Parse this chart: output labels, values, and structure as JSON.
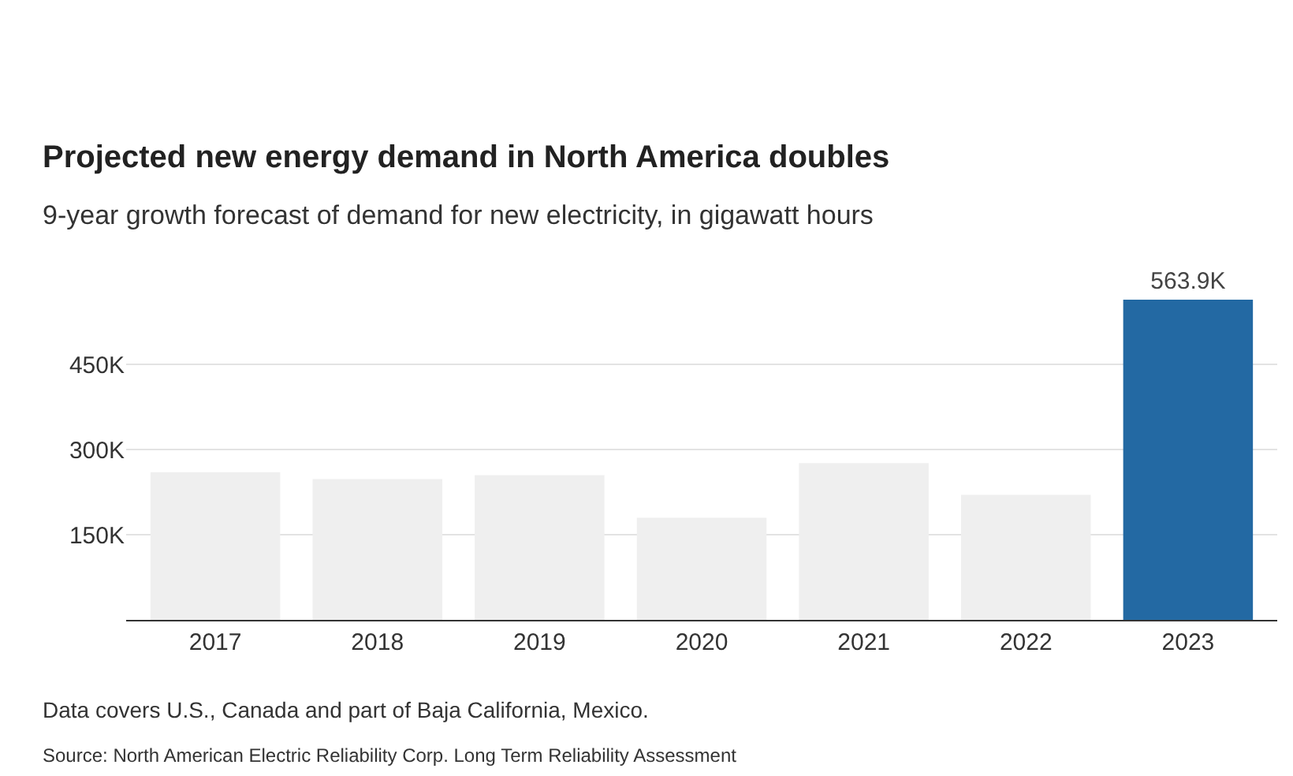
{
  "chart_data": {
    "type": "bar",
    "title": "Projected new energy demand in North America doubles",
    "subtitle": "9-year growth forecast of demand for new electricity, in gigawatt hours",
    "categories": [
      "2017",
      "2018",
      "2019",
      "2020",
      "2021",
      "2022",
      "2023"
    ],
    "values": [
      260000,
      248000,
      255000,
      180000,
      276000,
      220000,
      563900
    ],
    "colors": [
      "#efefef",
      "#efefef",
      "#efefef",
      "#efefef",
      "#efefef",
      "#efefef",
      "#2369a3"
    ],
    "value_labels": [
      null,
      null,
      null,
      null,
      null,
      null,
      "563.9K"
    ],
    "ylim": [
      0,
      563900
    ],
    "yticks": [
      {
        "value": 150000,
        "label": "150K"
      },
      {
        "value": 300000,
        "label": "300K"
      },
      {
        "value": 450000,
        "label": "450K"
      }
    ],
    "grid": "y",
    "annotations": [
      "Data covers U.S., Canada and part of Baja California, Mexico.",
      "Source: North American Electric Reliability Corp. Long Term Reliability Assessment"
    ]
  }
}
